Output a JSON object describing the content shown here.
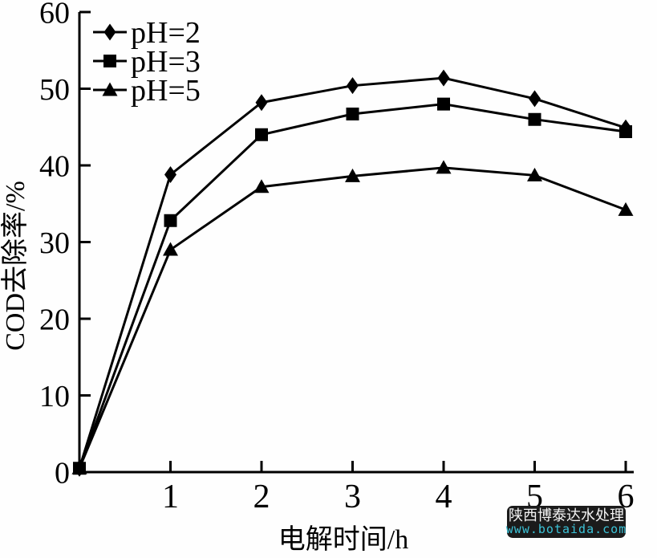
{
  "chart_data": {
    "type": "line",
    "title": "",
    "xlabel": "电解时间/h",
    "ylabel": "COD去除率/%",
    "xlim": [
      0,
      6
    ],
    "ylim": [
      0,
      60
    ],
    "x_ticks": [
      1,
      2,
      3,
      4,
      5,
      6
    ],
    "y_ticks": [
      0,
      10,
      20,
      30,
      40,
      50,
      60
    ],
    "grid": false,
    "legend_position": "top-left",
    "series_color": "#000000",
    "x": [
      0,
      1,
      2,
      3,
      4,
      5,
      6
    ],
    "series": [
      {
        "name": "pH=2",
        "marker": "diamond",
        "values": [
          0.5,
          38.8,
          48.2,
          50.4,
          51.4,
          48.7,
          44.9
        ]
      },
      {
        "name": "pH=3",
        "marker": "square",
        "values": [
          0.5,
          32.8,
          44.0,
          46.7,
          48.0,
          46.0,
          44.4
        ]
      },
      {
        "name": "pH=5",
        "marker": "triangle",
        "values": [
          0.5,
          29.0,
          37.2,
          38.6,
          39.7,
          38.7,
          34.2
        ]
      }
    ]
  },
  "watermark": {
    "line1": "陕西博泰达水处理",
    "line2": "www.botaida.com",
    "bg_color": "#1b1b1b",
    "text_color": "#f5f5f5",
    "url_color": "#3bc3d8"
  }
}
